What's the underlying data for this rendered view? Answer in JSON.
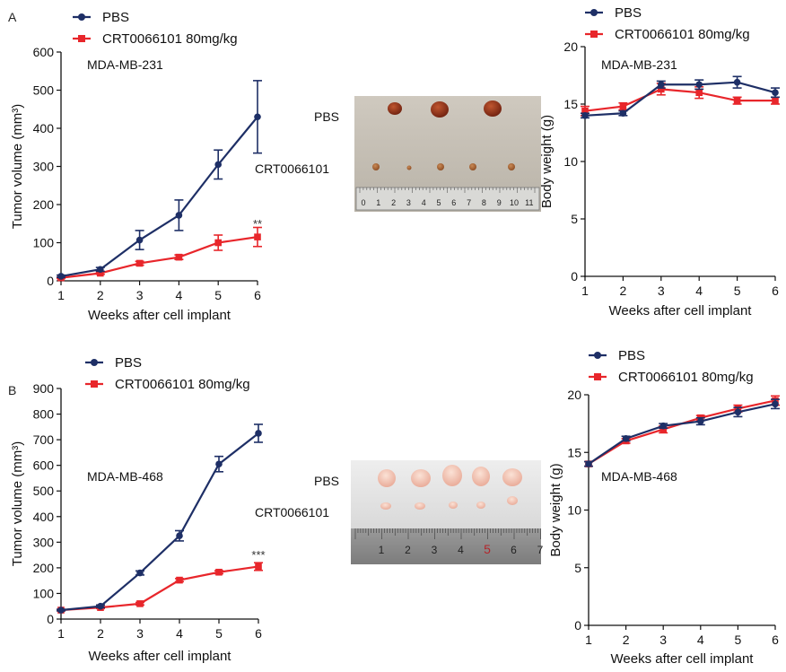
{
  "panels": [
    {
      "letter": "A"
    },
    {
      "letter": "B"
    }
  ],
  "photos": [
    {
      "labels": [
        "PBS",
        "CRT0066101"
      ],
      "ruler_numbers": [
        "0",
        "1",
        "2",
        "3",
        "4",
        "5",
        "6",
        "7",
        "8",
        "9",
        "10",
        "11"
      ]
    },
    {
      "labels": [
        "PBS",
        "CRT0066101"
      ],
      "ruler_numbers": [
        "1",
        "2",
        "3",
        "4",
        "5",
        "6",
        "7"
      ]
    }
  ],
  "colors": {
    "pbs": "#1e2f66",
    "crt": "#e8262b",
    "axis": "#111111"
  },
  "chart_data": [
    {
      "type": "line",
      "annotation": "MDA-MB-231",
      "xlabel": "Weeks after cell implant",
      "ylabel": "Tumor volume (mm³)",
      "x": [
        1,
        2,
        3,
        4,
        5,
        6
      ],
      "xlim": [
        1,
        6
      ],
      "ylim": [
        0,
        600
      ],
      "yticks": [
        0,
        100,
        200,
        300,
        400,
        500,
        600
      ],
      "significance": "**",
      "legend_position": "top-left",
      "series": [
        {
          "name": "PBS",
          "marker": "circle",
          "values": [
            12,
            30,
            107,
            172,
            305,
            430
          ],
          "errors": [
            3,
            5,
            25,
            40,
            38,
            95
          ]
        },
        {
          "name": "CRT0066101 80mg/kg",
          "marker": "square",
          "values": [
            8,
            20,
            46,
            62,
            100,
            115
          ],
          "errors": [
            2,
            3,
            5,
            6,
            20,
            25
          ]
        }
      ]
    },
    {
      "type": "line",
      "annotation": "MDA-MB-231",
      "xlabel": "Weeks after cell implant",
      "ylabel": "Body weight (g)",
      "x": [
        1,
        2,
        3,
        4,
        5,
        6
      ],
      "xlim": [
        1,
        6
      ],
      "ylim": [
        0,
        20
      ],
      "yticks": [
        0,
        5,
        10,
        15,
        20
      ],
      "legend_position": "top-left",
      "series": [
        {
          "name": "PBS",
          "marker": "circle",
          "values": [
            14.0,
            14.2,
            16.7,
            16.7,
            16.9,
            16.0
          ],
          "errors": [
            0.2,
            0.2,
            0.3,
            0.4,
            0.5,
            0.4
          ]
        },
        {
          "name": "CRT0066101 80mg/kg",
          "marker": "square",
          "values": [
            14.4,
            14.8,
            16.3,
            16.0,
            15.3,
            15.3
          ],
          "errors": [
            0.4,
            0.3,
            0.5,
            0.5,
            0.3,
            0.3
          ]
        }
      ]
    },
    {
      "type": "line",
      "annotation": "MDA-MB-468",
      "xlabel": "Weeks after cell implant",
      "ylabel": "Tumor volume (mm³)",
      "x": [
        1,
        2,
        3,
        4,
        5,
        6
      ],
      "xlim": [
        1,
        6
      ],
      "ylim": [
        0,
        900
      ],
      "yticks": [
        0,
        100,
        200,
        300,
        400,
        500,
        600,
        700,
        800,
        900
      ],
      "significance": "***",
      "legend_position": "top-left",
      "series": [
        {
          "name": "PBS",
          "marker": "circle",
          "values": [
            35,
            50,
            180,
            325,
            605,
            725
          ],
          "errors": [
            3,
            5,
            8,
            20,
            30,
            35
          ]
        },
        {
          "name": "CRT0066101 80mg/kg",
          "marker": "square",
          "values": [
            35,
            45,
            60,
            152,
            183,
            205
          ],
          "errors": [
            3,
            4,
            5,
            6,
            6,
            15
          ]
        }
      ]
    },
    {
      "type": "line",
      "annotation": "MDA-MB-468",
      "xlabel": "Weeks after cell implant",
      "ylabel": "Body weight (g)",
      "x": [
        1,
        2,
        3,
        4,
        5,
        6
      ],
      "xlim": [
        1,
        6
      ],
      "ylim": [
        0,
        20
      ],
      "yticks": [
        0,
        5,
        10,
        15,
        20
      ],
      "legend_position": "top-left",
      "series": [
        {
          "name": "PBS",
          "marker": "circle",
          "values": [
            14.0,
            16.2,
            17.3,
            17.7,
            18.5,
            19.2
          ],
          "errors": [
            0.2,
            0.2,
            0.2,
            0.3,
            0.4,
            0.4
          ]
        },
        {
          "name": "CRT0066101 80mg/kg",
          "marker": "square",
          "values": [
            14.0,
            16.0,
            17.0,
            18.0,
            18.8,
            19.5
          ],
          "errors": [
            0.2,
            0.2,
            0.3,
            0.2,
            0.3,
            0.4
          ]
        }
      ]
    }
  ]
}
